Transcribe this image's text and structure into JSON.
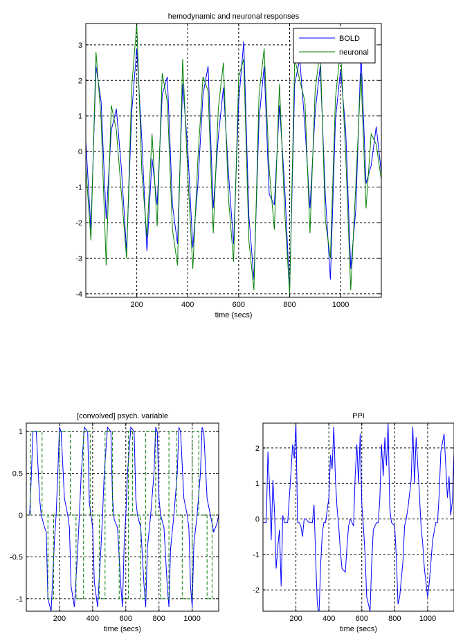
{
  "chart_data": [
    {
      "type": "line",
      "title": "hemodynamic and neuronal responses",
      "xlabel": "time (secs)",
      "ylabel": "",
      "xlim": [
        0,
        1160
      ],
      "ylim": [
        -4.1,
        3.6
      ],
      "xticks": [
        200,
        400,
        600,
        800,
        1000
      ],
      "yticks": [
        -4,
        -3,
        -2,
        -1,
        0,
        1,
        2,
        3
      ],
      "grid": true,
      "legend": "top-right",
      "series": [
        {
          "name": "BOLD",
          "color": "#0000ff",
          "x": [
            0,
            20,
            40,
            60,
            80,
            100,
            120,
            140,
            160,
            180,
            200,
            220,
            240,
            260,
            280,
            300,
            320,
            340,
            360,
            380,
            400,
            420,
            440,
            460,
            480,
            500,
            520,
            540,
            560,
            580,
            600,
            620,
            640,
            660,
            680,
            700,
            720,
            740,
            760,
            780,
            800,
            820,
            840,
            860,
            880,
            900,
            920,
            940,
            960,
            980,
            1000,
            1020,
            1040,
            1060,
            1080,
            1100,
            1120,
            1140,
            1160
          ],
          "values": [
            0.3,
            -2.2,
            2.4,
            1.4,
            -1.9,
            0.6,
            1.2,
            -0.5,
            -2.8,
            1.1,
            2.9,
            0.3,
            -2.8,
            -0.2,
            -1.5,
            1.6,
            2.1,
            -1.5,
            -2.6,
            1.9,
            0.1,
            -2.7,
            -0.9,
            1.6,
            2.4,
            -1.6,
            0.4,
            1.8,
            -0.6,
            -2.6,
            1.4,
            3.1,
            -1.8,
            -3.6,
            0.9,
            2.4,
            -1.2,
            -1.5,
            1.3,
            -0.9,
            -3.9,
            1.9,
            2.6,
            0.7,
            -1.6,
            1.1,
            2.4,
            -1.2,
            -3.6,
            0.9,
            2.3,
            0.6,
            -3.3,
            -1.6,
            2.8,
            -0.9,
            -0.4,
            0.7,
            -0.6
          ]
        },
        {
          "name": "neuronal",
          "color": "#008000",
          "x": [
            0,
            20,
            40,
            60,
            80,
            100,
            120,
            140,
            160,
            180,
            200,
            220,
            240,
            260,
            280,
            300,
            320,
            340,
            360,
            380,
            400,
            420,
            440,
            460,
            480,
            500,
            520,
            540,
            560,
            580,
            600,
            620,
            640,
            660,
            680,
            700,
            720,
            740,
            760,
            780,
            800,
            820,
            840,
            860,
            880,
            900,
            920,
            940,
            960,
            980,
            1000,
            1020,
            1040,
            1060,
            1080,
            1100,
            1120,
            1140,
            1160
          ],
          "values": [
            -0.4,
            -2.5,
            2.8,
            0.9,
            -3.2,
            1.3,
            0.6,
            -1.2,
            -3.0,
            1.8,
            3.6,
            -0.6,
            -2.4,
            0.5,
            -2.1,
            2.2,
            1.4,
            -2.2,
            -3.2,
            2.6,
            -0.6,
            -3.3,
            -0.2,
            2.1,
            1.7,
            -2.3,
            1.2,
            2.5,
            -1.3,
            -3.1,
            2.1,
            2.6,
            -2.5,
            -3.9,
            1.6,
            2.9,
            -0.5,
            -2.2,
            1.9,
            -1.6,
            -4.0,
            2.6,
            2.0,
            1.4,
            -2.3,
            1.7,
            2.9,
            -1.9,
            -3.0,
            1.5,
            2.9,
            -0.1,
            -3.9,
            -0.9,
            2.2,
            -1.6,
            0.5,
            0.2,
            -0.8
          ]
        }
      ]
    },
    {
      "type": "line",
      "title": "[convolved] psych. variable",
      "xlabel": "time (secs)",
      "ylabel": "",
      "xlim": [
        0,
        1160
      ],
      "ylim": [
        -1.15,
        1.1
      ],
      "xticks": [
        200,
        400,
        600,
        800,
        1000
      ],
      "yticks": [
        -1,
        -0.5,
        0,
        0.5,
        1
      ],
      "ytick_labels": [
        "-1",
        "-0.5",
        "0",
        "0.5",
        "1"
      ],
      "grid": true,
      "series": [
        {
          "color": "#0000ff",
          "x": [
            0,
            20,
            30,
            40,
            60,
            80,
            90,
            110,
            120,
            130,
            150,
            170,
            180,
            190,
            200,
            210,
            230,
            250,
            260,
            270,
            290,
            310,
            320,
            330,
            350,
            370,
            380,
            390,
            400,
            410,
            430,
            450,
            460,
            470,
            490,
            510,
            520,
            530,
            550,
            570,
            580,
            590,
            600,
            610,
            630,
            650,
            660,
            670,
            690,
            710,
            720,
            730,
            750,
            770,
            780,
            790,
            800,
            810,
            830,
            850,
            860,
            870,
            890,
            910,
            920,
            930,
            950,
            970,
            980,
            990,
            1000,
            1010,
            1030,
            1050,
            1060,
            1070,
            1090,
            1110,
            1120,
            1130,
            1150,
            1160
          ],
          "values": [
            0,
            0,
            0.45,
            1.0,
            1.0,
            0.2,
            0,
            -0.15,
            -0.2,
            -1.0,
            -1.15,
            -0.3,
            0,
            0.5,
            1.05,
            1.0,
            0.2,
            0,
            -0.15,
            -0.85,
            -1.1,
            -0.4,
            0,
            0.45,
            1.05,
            1.0,
            0.15,
            0,
            -0.15,
            -0.8,
            -1.1,
            -0.4,
            0,
            0.5,
            1.05,
            1.0,
            0.2,
            -0.05,
            -0.15,
            -0.85,
            -1.1,
            -0.35,
            0,
            0.5,
            1.05,
            1.0,
            0.2,
            0,
            -0.15,
            -0.85,
            -1.1,
            -0.4,
            0,
            0.5,
            1.05,
            1.0,
            0.2,
            0,
            -0.15,
            -0.85,
            -1.1,
            -0.4,
            0,
            0.5,
            1.05,
            1.0,
            0.2,
            0,
            -0.15,
            -0.85,
            -1.1,
            -0.35,
            0,
            0.5,
            1.05,
            1.0,
            0.2,
            0,
            -0.1,
            -0.2,
            -0.1,
            0
          ]
        },
        {
          "color": "#008000",
          "dashed": true,
          "x": [
            0,
            25,
            25,
            95,
            95,
            130,
            130,
            165,
            165,
            200,
            200,
            265,
            265,
            300,
            300,
            345,
            345,
            385,
            385,
            440,
            440,
            475,
            475,
            520,
            520,
            560,
            560,
            615,
            615,
            640,
            640,
            690,
            690,
            720,
            720,
            780,
            780,
            810,
            810,
            860,
            860,
            905,
            905,
            940,
            940,
            1000,
            1000,
            1040,
            1040,
            1090,
            1090,
            1120,
            1120,
            1160
          ],
          "values": [
            0,
            0,
            1,
            1,
            0,
            0,
            -1,
            -1,
            0,
            0,
            1,
            1,
            0,
            0,
            -1,
            -1,
            1,
            1,
            0,
            0,
            -1,
            -1,
            1,
            1,
            0,
            0,
            -1,
            -1,
            1,
            1,
            0,
            0,
            -1,
            -1,
            1,
            1,
            0,
            0,
            -1,
            -1,
            1,
            1,
            0,
            0,
            -1,
            -1,
            1,
            1,
            0,
            0,
            -1,
            -1,
            0,
            0
          ]
        }
      ]
    },
    {
      "type": "line",
      "title": "PPI",
      "xlabel": "time (secs)",
      "ylabel": "",
      "xlim": [
        0,
        1160
      ],
      "ylim": [
        -2.6,
        2.7
      ],
      "xticks": [
        200,
        400,
        600,
        800,
        1000
      ],
      "yticks": [
        -2,
        -1,
        0,
        1,
        2
      ],
      "grid": true,
      "series": [
        {
          "color": "#0000ff",
          "x": [
            0,
            20,
            30,
            40,
            50,
            60,
            70,
            80,
            90,
            100,
            110,
            120,
            130,
            150,
            170,
            180,
            190,
            200,
            210,
            220,
            230,
            240,
            250,
            260,
            280,
            300,
            310,
            320,
            330,
            340,
            350,
            360,
            370,
            380,
            400,
            410,
            420,
            430,
            440,
            450,
            460,
            470,
            480,
            500,
            510,
            520,
            530,
            550,
            560,
            570,
            580,
            590,
            600,
            610,
            620,
            630,
            650,
            660,
            670,
            690,
            700,
            710,
            720,
            730,
            740,
            750,
            760,
            770,
            780,
            800,
            810,
            820,
            830,
            850,
            860,
            870,
            880,
            900,
            910,
            920,
            930,
            950,
            960,
            970,
            980,
            1000,
            1010,
            1020,
            1030,
            1050,
            1060,
            1070,
            1080,
            1100,
            1110,
            1120,
            1130,
            1140,
            1150,
            1160
          ],
          "values": [
            -0.1,
            -0.1,
            1.9,
            0.9,
            -0.6,
            1.1,
            0.2,
            -1.4,
            -0.8,
            -0.3,
            -1.9,
            0.1,
            -0.1,
            -0.1,
            1.3,
            2.1,
            1.7,
            2.7,
            -0.1,
            -0.1,
            -0.2,
            -0.5,
            0,
            0,
            -0.1,
            -0.1,
            0.4,
            -1.1,
            -2.4,
            -2.7,
            -1.3,
            -0.4,
            -0.1,
            -0.1,
            0.6,
            1.8,
            1.4,
            2.6,
            1.1,
            0.3,
            -0.2,
            -0.9,
            -1.4,
            -1.5,
            -0.8,
            -0.2,
            0,
            -0.2,
            1.2,
            2.1,
            1.0,
            2.4,
            0.4,
            -0.2,
            -1.0,
            -2.2,
            -2.6,
            -1.3,
            -0.3,
            -0.1,
            -0.1,
            0.6,
            2.1,
            1.2,
            2.3,
            1.5,
            2.7,
            0.3,
            -0.1,
            -0.2,
            -1.1,
            -2.4,
            -2.2,
            -1.2,
            -0.2,
            0,
            0.3,
            1.1,
            2.6,
            1.0,
            2.3,
            0.7,
            -0.2,
            -0.7,
            -1.4,
            -2.2,
            -1.8,
            -1.2,
            -0.6,
            -0.1,
            -0.1,
            0.7,
            1.9,
            2.4,
            1.5,
            0.6,
            1.2,
            0.1,
            0.5,
            1.9
          ]
        }
      ]
    }
  ]
}
